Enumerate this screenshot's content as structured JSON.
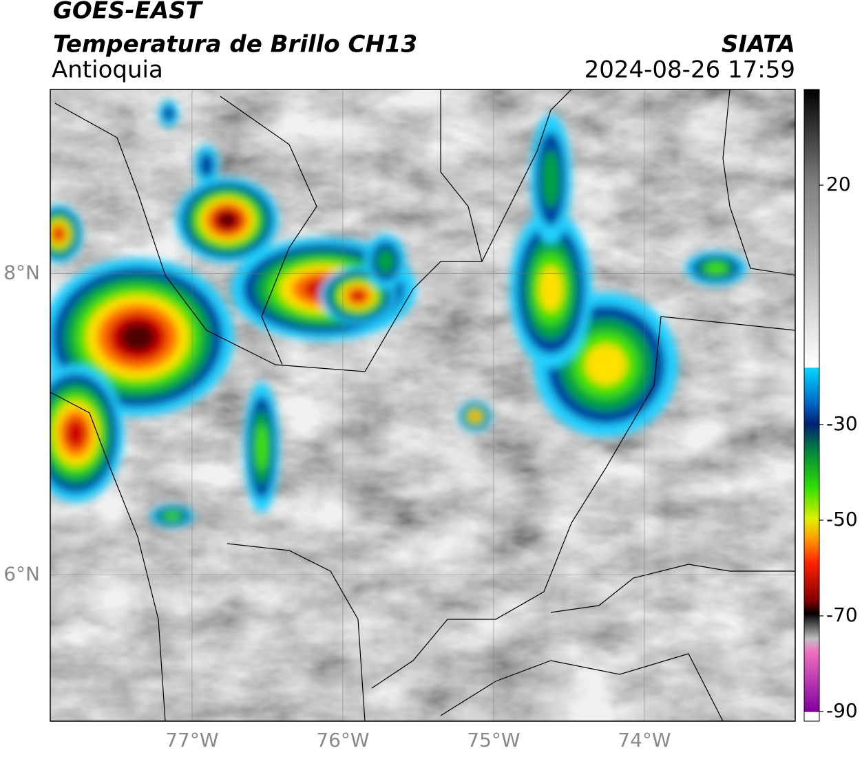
{
  "header": {
    "title": "GOES-EAST",
    "subtitle": "Temperatura de Brillo CH13",
    "region": "Antioquia",
    "source": "SIATA",
    "timestamp": "2024-08-26 17:59"
  },
  "map": {
    "xlim": [
      -77.94,
      -73.0
    ],
    "ylim": [
      5.03,
      9.22
    ],
    "xticks": [
      {
        "value": -77,
        "label": "77°W"
      },
      {
        "value": -76,
        "label": "76°W"
      },
      {
        "value": -75,
        "label": "75°W"
      },
      {
        "value": -74,
        "label": "74°W"
      }
    ],
    "yticks": [
      {
        "value": 8,
        "label": "8°N"
      },
      {
        "value": 6,
        "label": "6°N"
      }
    ]
  },
  "colorbar": {
    "lim": [
      -92,
      40
    ],
    "ticks": [
      20,
      -30,
      -50,
      -70,
      -90
    ]
  }
}
